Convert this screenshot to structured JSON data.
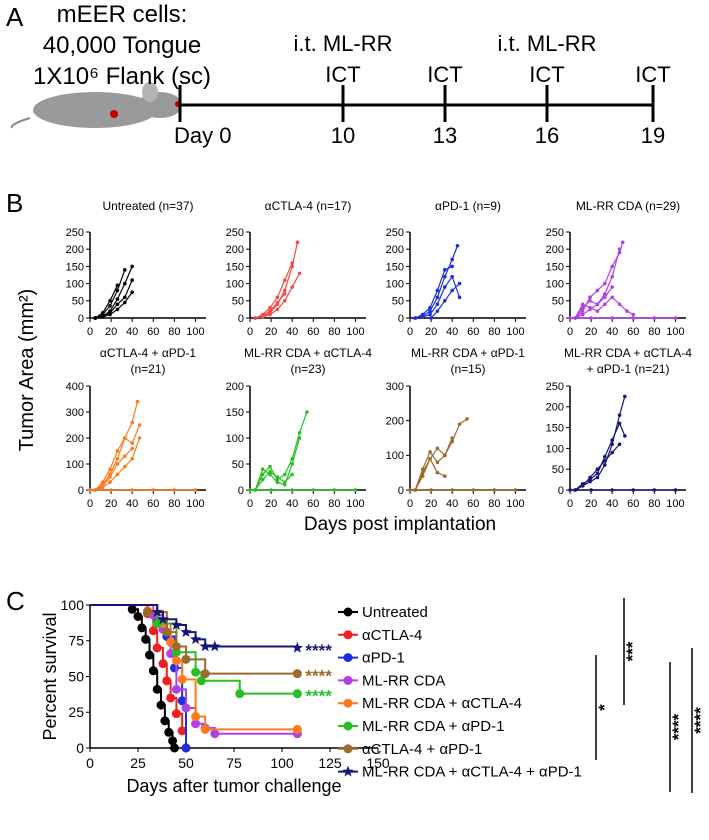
{
  "panel_a": {
    "label": "A",
    "cells": [
      "mEER cells:",
      "40,000 Tongue",
      "1X10⁶ Flank (sc)"
    ],
    "timeline": [
      {
        "label": "Day 0"
      },
      {
        "label": "10",
        "above": [
          "i.t. ML-RR",
          "ICT"
        ]
      },
      {
        "label": "13",
        "above": [
          "ICT"
        ]
      },
      {
        "label": "16",
        "above": [
          "i.t. ML-RR",
          "ICT"
        ]
      },
      {
        "label": "19",
        "above": [
          "ICT"
        ]
      }
    ]
  },
  "panel_b": {
    "label": "B",
    "ylabel": "Tumor Area (mm²)",
    "xlabel": "Days post implantation"
  },
  "panel_c": {
    "label": "C",
    "significance": [
      "*",
      "***",
      "****",
      "****"
    ]
  },
  "chart_data": [
    {
      "type": "line",
      "title": [
        "Untreated (n=37)"
      ],
      "color": "#000000",
      "xlim": [
        0,
        110
      ],
      "xticks": [
        0,
        20,
        40,
        60,
        80,
        100
      ],
      "ylim": [
        0,
        250
      ],
      "yticks": [
        0,
        50,
        100,
        150,
        200,
        250
      ],
      "series": [
        {
          "x": [
            5,
            12,
            19,
            26,
            33,
            40
          ],
          "values": [
            0,
            5,
            20,
            55,
            100,
            150
          ]
        },
        {
          "x": [
            5,
            12,
            19,
            26,
            33
          ],
          "values": [
            0,
            10,
            35,
            80,
            140
          ]
        },
        {
          "x": [
            5,
            12,
            19,
            26,
            33,
            40
          ],
          "values": [
            0,
            5,
            15,
            40,
            60,
            110
          ]
        },
        {
          "x": [
            5,
            12,
            19,
            26
          ],
          "values": [
            0,
            15,
            50,
            95
          ]
        },
        {
          "x": [
            5,
            12,
            19,
            26,
            33,
            40
          ],
          "values": [
            0,
            3,
            10,
            25,
            45,
            75
          ]
        }
      ]
    },
    {
      "type": "line",
      "title": [
        "αCTLA-4 (n=17)"
      ],
      "color": "#ef4b4b",
      "xlim": [
        0,
        110
      ],
      "xticks": [
        0,
        20,
        40,
        60,
        80,
        100
      ],
      "ylim": [
        0,
        250
      ],
      "yticks": [
        0,
        50,
        100,
        150,
        200,
        250
      ],
      "series": [
        {
          "x": [
            5,
            12,
            19,
            26,
            33,
            40,
            45
          ],
          "values": [
            0,
            5,
            15,
            40,
            80,
            150,
            220
          ]
        },
        {
          "x": [
            5,
            12,
            19,
            26,
            33,
            40
          ],
          "values": [
            0,
            10,
            30,
            60,
            110,
            160
          ]
        },
        {
          "x": [
            5,
            12,
            19,
            26,
            33,
            40,
            47
          ],
          "values": [
            0,
            3,
            10,
            25,
            50,
            90,
            130
          ]
        },
        {
          "x": [
            5,
            12,
            19,
            26,
            33
          ],
          "values": [
            0,
            8,
            20,
            45,
            70
          ]
        }
      ]
    },
    {
      "type": "line",
      "title": [
        "αPD-1 (n=9)"
      ],
      "color": "#1c2ee0",
      "xlim": [
        0,
        110
      ],
      "xticks": [
        0,
        20,
        40,
        60,
        80,
        100
      ],
      "ylim": [
        0,
        250
      ],
      "yticks": [
        0,
        50,
        100,
        150,
        200,
        250
      ],
      "series": [
        {
          "x": [
            5,
            12,
            19,
            26,
            33,
            40,
            45
          ],
          "values": [
            0,
            5,
            20,
            60,
            120,
            170,
            210
          ]
        },
        {
          "x": [
            5,
            12,
            19,
            26,
            33,
            40
          ],
          "values": [
            0,
            10,
            30,
            80,
            140,
            150
          ]
        },
        {
          "x": [
            5,
            12,
            19,
            26,
            33,
            40,
            47
          ],
          "values": [
            0,
            3,
            10,
            40,
            90,
            120,
            60
          ]
        },
        {
          "x": [
            20,
            26,
            33,
            40,
            47
          ],
          "values": [
            0,
            20,
            50,
            80,
            100
          ]
        }
      ]
    },
    {
      "type": "line",
      "title": [
        "ML-RR CDA (n=29)"
      ],
      "color": "#b040e8",
      "xlim": [
        0,
        110
      ],
      "xticks": [
        0,
        20,
        40,
        60,
        80,
        100
      ],
      "ylim": [
        0,
        250
      ],
      "yticks": [
        0,
        50,
        100,
        150,
        200,
        250
      ],
      "series": [
        {
          "x": [
            5,
            12,
            19,
            26,
            33,
            40,
            47,
            50
          ],
          "values": [
            0,
            20,
            60,
            80,
            100,
            150,
            190,
            220
          ]
        },
        {
          "x": [
            5,
            12,
            19,
            26,
            33,
            40,
            47
          ],
          "values": [
            0,
            30,
            50,
            40,
            70,
            120,
            200
          ]
        },
        {
          "x": [
            5,
            12,
            19,
            26,
            33,
            40
          ],
          "values": [
            0,
            10,
            25,
            40,
            60,
            90
          ]
        },
        {
          "x": [
            5,
            12,
            19,
            26,
            33,
            40,
            47,
            54,
            60
          ],
          "values": [
            0,
            40,
            30,
            20,
            40,
            60,
            40,
            20,
            10
          ]
        },
        {
          "x": [
            0,
            20,
            40,
            60,
            80,
            100
          ],
          "values": [
            0,
            0,
            0,
            0,
            0,
            0
          ]
        }
      ]
    },
    {
      "type": "line",
      "title": [
        "αCTLA-4 + αPD-1",
        "(n=21)"
      ],
      "color": "#ff7a1c",
      "xlim": [
        0,
        110
      ],
      "xticks": [
        0,
        20,
        40,
        60,
        80,
        100
      ],
      "ylim": [
        0,
        400
      ],
      "yticks": [
        0,
        100,
        200,
        300,
        400
      ],
      "series": [
        {
          "x": [
            5,
            12,
            19,
            26,
            33,
            40,
            45
          ],
          "values": [
            0,
            20,
            60,
            120,
            200,
            260,
            340
          ]
        },
        {
          "x": [
            5,
            12,
            19,
            26,
            33,
            40,
            47
          ],
          "values": [
            0,
            30,
            80,
            150,
            200,
            180,
            250
          ]
        },
        {
          "x": [
            5,
            12,
            19,
            26,
            33,
            40
          ],
          "values": [
            0,
            15,
            50,
            100,
            130,
            160
          ]
        },
        {
          "x": [
            5,
            12,
            19,
            26,
            33,
            40,
            47
          ],
          "values": [
            0,
            10,
            30,
            60,
            90,
            120,
            200
          ]
        },
        {
          "x": [
            0,
            20,
            40,
            60,
            80,
            100
          ],
          "values": [
            0,
            0,
            0,
            0,
            0,
            0
          ]
        }
      ]
    },
    {
      "type": "line",
      "title": [
        "ML-RR CDA + αCTLA-4",
        "(n=23)"
      ],
      "color": "#27c024",
      "xlim": [
        0,
        110
      ],
      "xticks": [
        0,
        20,
        40,
        60,
        80,
        100
      ],
      "ylim": [
        0,
        200
      ],
      "yticks": [
        0,
        50,
        100,
        150,
        200
      ],
      "series": [
        {
          "x": [
            5,
            12,
            19,
            26,
            33,
            40,
            47,
            54
          ],
          "values": [
            0,
            30,
            45,
            20,
            30,
            60,
            110,
            150
          ]
        },
        {
          "x": [
            5,
            12,
            19,
            26,
            33,
            40,
            47
          ],
          "values": [
            0,
            40,
            30,
            15,
            10,
            50,
            100
          ]
        },
        {
          "x": [
            5,
            12,
            19,
            26,
            33,
            40
          ],
          "values": [
            0,
            20,
            35,
            25,
            15,
            30
          ]
        },
        {
          "x": [
            0,
            20,
            40,
            60,
            80,
            100
          ],
          "values": [
            0,
            0,
            0,
            0,
            0,
            0
          ]
        }
      ]
    },
    {
      "type": "line",
      "title": [
        "ML-RR CDA + αPD-1",
        "(n=15)"
      ],
      "color": "#9b6b2b",
      "xlim": [
        0,
        110
      ],
      "xticks": [
        0,
        20,
        40,
        60,
        80,
        100
      ],
      "ylim": [
        0,
        300
      ],
      "yticks": [
        0,
        100,
        200,
        300
      ],
      "series": [
        {
          "x": [
            5,
            12,
            19,
            26,
            33,
            40,
            47,
            54
          ],
          "values": [
            0,
            50,
            90,
            120,
            100,
            140,
            190,
            205
          ]
        },
        {
          "x": [
            5,
            12,
            19,
            26,
            33,
            40
          ],
          "values": [
            0,
            60,
            110,
            80,
            100,
            150
          ]
        },
        {
          "x": [
            5,
            12,
            19,
            26,
            33
          ],
          "values": [
            0,
            40,
            90,
            50,
            40
          ]
        },
        {
          "x": [
            0,
            20,
            40,
            60,
            80,
            100
          ],
          "values": [
            0,
            0,
            0,
            0,
            0,
            0
          ]
        }
      ]
    },
    {
      "type": "line",
      "title": [
        "ML-RR CDA + αCTLA-4",
        "+ αPD-1 (n=21)"
      ],
      "color": "#16167a",
      "xlim": [
        0,
        110
      ],
      "xticks": [
        0,
        20,
        40,
        60,
        80,
        100
      ],
      "ylim": [
        0,
        250
      ],
      "yticks": [
        0,
        50,
        100,
        150,
        200,
        250
      ],
      "series": [
        {
          "x": [
            5,
            12,
            19,
            26,
            33,
            40,
            47,
            52
          ],
          "values": [
            0,
            10,
            20,
            30,
            60,
            110,
            180,
            225
          ]
        },
        {
          "x": [
            5,
            12,
            19,
            26,
            33,
            40,
            47,
            52
          ],
          "values": [
            0,
            15,
            25,
            40,
            80,
            120,
            160,
            130
          ]
        },
        {
          "x": [
            5,
            12,
            19,
            26,
            33,
            40,
            47
          ],
          "values": [
            0,
            10,
            30,
            50,
            70,
            90,
            110
          ]
        },
        {
          "x": [
            0,
            20,
            40,
            60,
            80,
            100
          ],
          "values": [
            0,
            0,
            0,
            0,
            0,
            0
          ]
        }
      ]
    },
    {
      "type": "step",
      "ylabel": "Percent survival",
      "xlabel": "Days after tumor challenge",
      "xlim": [
        0,
        150
      ],
      "xticks": [
        0,
        25,
        50,
        75,
        100,
        125,
        150
      ],
      "ylim": [
        0,
        100
      ],
      "yticks": [
        0,
        25,
        50,
        75,
        100
      ],
      "series": [
        {
          "name": "Untreated",
          "color": "#000000",
          "x": [
            0,
            22,
            25,
            27,
            29,
            31,
            33,
            35,
            37,
            39,
            41,
            43,
            44
          ],
          "values": [
            100,
            97,
            92,
            84,
            76,
            65,
            54,
            41,
            30,
            19,
            11,
            5,
            0
          ]
        },
        {
          "name": "αCTLA-4",
          "color": "#ef2020",
          "x": [
            0,
            30,
            33,
            35,
            38,
            40,
            42,
            45,
            48,
            50
          ],
          "values": [
            100,
            94,
            82,
            70,
            59,
            47,
            35,
            24,
            12,
            0
          ]
        },
        {
          "name": "αPD-1",
          "color": "#1c2ee0",
          "x": [
            0,
            35,
            40,
            44,
            48,
            50
          ],
          "values": [
            100,
            89,
            78,
            56,
            33,
            0
          ]
        },
        {
          "name": "ML-RR CDA",
          "color": "#b040e8",
          "x": [
            0,
            33,
            38,
            42,
            45,
            50,
            55,
            60,
            65,
            108
          ],
          "values": [
            100,
            93,
            83,
            66,
            41,
            28,
            17,
            14,
            10,
            10
          ]
        },
        {
          "name": "ML-RR CDA + αCTLA-4",
          "color": "#ff7a1c",
          "x": [
            0,
            30,
            38,
            42,
            45,
            48,
            55,
            60,
            108
          ],
          "values": [
            100,
            96,
            87,
            74,
            61,
            48,
            22,
            13,
            13
          ]
        },
        {
          "name": "ML-RR CDA + αPD-1",
          "color": "#27c024",
          "x": [
            0,
            35,
            45,
            55,
            58,
            78,
            108
          ],
          "values": [
            100,
            87,
            67,
            53,
            47,
            38,
            38
          ],
          "annotation": "****"
        },
        {
          "name": "αCTLA-4 + αPD-1",
          "color": "#9b6b2b",
          "x": [
            0,
            30,
            40,
            45,
            50,
            60,
            108
          ],
          "values": [
            100,
            95,
            81,
            71,
            62,
            52,
            52
          ],
          "annotation": "****"
        },
        {
          "name": "ML-RR CDA + αCTLA-4 + αPD-1",
          "color": "#16167a",
          "marker": "star",
          "x": [
            0,
            35,
            38,
            45,
            50,
            55,
            60,
            65,
            108
          ],
          "values": [
            100,
            95,
            90,
            86,
            81,
            76,
            71,
            71,
            70
          ],
          "annotation": "****"
        }
      ]
    }
  ]
}
